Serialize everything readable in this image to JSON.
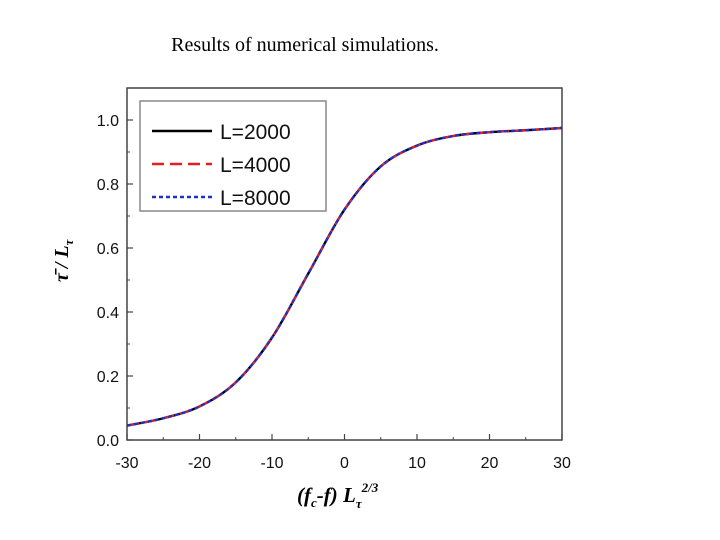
{
  "slide": {
    "title": "Results of numerical simulations."
  },
  "chart_data": {
    "type": "line",
    "title": "Results of numerical simulations.",
    "xlabel": {
      "pre": "(f",
      "sub1": "c",
      "mid": "-f) L",
      "sub2": "τ",
      "sup": "2/3"
    },
    "ylabel": {
      "main": "τ̄ / L",
      "sub": "τ"
    },
    "xlim": [
      -30,
      30
    ],
    "ylim": [
      0,
      1.1
    ],
    "xticks": [
      -30,
      -20,
      -10,
      0,
      10,
      20,
      30
    ],
    "xtick_labels": [
      "-30",
      "-20",
      "-10",
      "0",
      "10",
      "20",
      "30"
    ],
    "yticks": [
      0.0,
      0.2,
      0.4,
      0.6,
      0.8,
      1.0
    ],
    "ytick_labels": [
      "0.0",
      "0.2",
      "0.4",
      "0.6",
      "0.8",
      "1.0"
    ],
    "grid": false,
    "legend_position": "top-left",
    "x": [
      -30,
      -25,
      -20,
      -15,
      -10,
      -5,
      0,
      5,
      10,
      15,
      20,
      25,
      30
    ],
    "series": [
      {
        "name": "L=2000",
        "color": "#000000",
        "style": "solid",
        "values": [
          0.045,
          0.068,
          0.105,
          0.18,
          0.32,
          0.52,
          0.72,
          0.855,
          0.92,
          0.95,
          0.962,
          0.968,
          0.975
        ]
      },
      {
        "name": "L=4000",
        "color": "#e02020",
        "style": "dashed",
        "values": [
          0.045,
          0.068,
          0.105,
          0.18,
          0.32,
          0.52,
          0.72,
          0.855,
          0.92,
          0.95,
          0.962,
          0.968,
          0.975
        ]
      },
      {
        "name": "L=8000",
        "color": "#2030c0",
        "style": "dotted",
        "values": [
          0.045,
          0.068,
          0.105,
          0.18,
          0.32,
          0.52,
          0.72,
          0.855,
          0.92,
          0.95,
          0.962,
          0.968,
          0.975
        ]
      }
    ]
  }
}
